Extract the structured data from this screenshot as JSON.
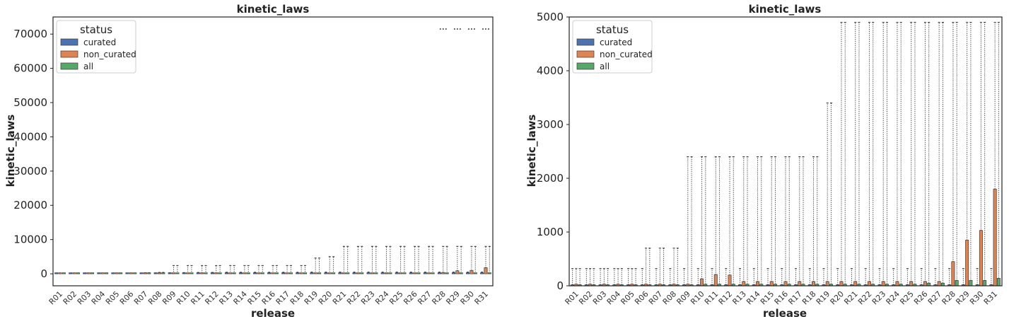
{
  "chart_data": [
    {
      "type": "box",
      "title": "kinetic_laws",
      "xlabel": "release",
      "ylabel": "kinetic_laws",
      "ylim": [
        -3500,
        75000
      ],
      "yticks": [
        "0",
        "10000",
        "20000",
        "30000",
        "40000",
        "50000",
        "60000",
        "70000"
      ],
      "ytick_values": [
        0,
        10000,
        20000,
        30000,
        40000,
        50000,
        60000,
        70000
      ],
      "categories": [
        "R01",
        "R02",
        "R03",
        "R04",
        "R05",
        "R06",
        "R07",
        "R08",
        "R09",
        "R10",
        "R11",
        "R12",
        "R13",
        "R14",
        "R15",
        "R16",
        "R17",
        "R18",
        "R19",
        "R20",
        "R21",
        "R22",
        "R23",
        "R24",
        "R25",
        "R26",
        "R27",
        "R28",
        "R29",
        "R30",
        "R31"
      ],
      "legend": {
        "title": "status",
        "position": "top-left"
      },
      "grid": false,
      "series": [
        {
          "name": "curated",
          "color": "#4C72B0",
          "q3": [
            20,
            20,
            20,
            20,
            20,
            20,
            20,
            20,
            20,
            20,
            20,
            20,
            20,
            20,
            20,
            20,
            20,
            20,
            20,
            20,
            20,
            20,
            20,
            20,
            20,
            20,
            20,
            20,
            20,
            20,
            20
          ],
          "max": [
            120,
            120,
            120,
            120,
            120,
            150,
            200,
            250,
            300,
            350,
            400,
            400,
            450,
            450,
            450,
            450,
            450,
            450,
            500,
            500,
            500,
            500,
            500,
            500,
            500,
            500,
            500,
            500,
            500,
            500,
            500
          ]
        },
        {
          "name": "non_curated",
          "color": "#DD8452",
          "q3": [
            30,
            30,
            30,
            30,
            30,
            30,
            30,
            30,
            30,
            100,
            200,
            200,
            100,
            100,
            100,
            100,
            100,
            100,
            100,
            100,
            100,
            100,
            100,
            100,
            100,
            100,
            100,
            400,
            900,
            1000,
            1800
          ],
          "max": [
            150,
            150,
            150,
            150,
            150,
            200,
            300,
            400,
            2400,
            2400,
            2400,
            2400,
            2400,
            2400,
            2400,
            2400,
            2400,
            2400,
            4600,
            5000,
            8000,
            8000,
            8000,
            8000,
            8000,
            8000,
            8000,
            8000,
            8000,
            8000,
            8000
          ]
        },
        {
          "name": "all",
          "color": "#55A868",
          "q3": [
            20,
            20,
            20,
            20,
            20,
            20,
            20,
            20,
            20,
            30,
            30,
            30,
            30,
            30,
            30,
            30,
            30,
            30,
            30,
            30,
            30,
            30,
            30,
            30,
            30,
            50,
            50,
            100,
            100,
            100,
            150
          ],
          "max": [
            150,
            150,
            150,
            150,
            150,
            200,
            300,
            400,
            2400,
            2400,
            2400,
            2400,
            2400,
            2400,
            2400,
            2400,
            2400,
            2400,
            4600,
            5000,
            8000,
            8000,
            8000,
            8000,
            8000,
            8000,
            8000,
            8000,
            8000,
            8000,
            8000
          ]
        }
      ],
      "outliers_extreme": {
        "categories": [
          "R28",
          "R29",
          "R30",
          "R31"
        ],
        "value": 71500
      }
    },
    {
      "type": "box",
      "title": "kinetic_laws",
      "xlabel": "release",
      "ylabel": "kinetic_laws",
      "ylim": [
        0,
        5000
      ],
      "yticks": [
        "0",
        "1000",
        "2000",
        "3000",
        "4000",
        "5000"
      ],
      "ytick_values": [
        0,
        1000,
        2000,
        3000,
        4000,
        5000
      ],
      "categories": [
        "R01",
        "R02",
        "R03",
        "R04",
        "R05",
        "R06",
        "R07",
        "R08",
        "R09",
        "R10",
        "R11",
        "R12",
        "R13",
        "R14",
        "R15",
        "R16",
        "R17",
        "R18",
        "R19",
        "R20",
        "R21",
        "R22",
        "R23",
        "R24",
        "R25",
        "R26",
        "R27",
        "R28",
        "R29",
        "R30",
        "R31"
      ],
      "legend": {
        "title": "status",
        "position": "top-left"
      },
      "grid": false,
      "series": [
        {
          "name": "curated",
          "color": "#4C72B0",
          "q3": [
            20,
            20,
            20,
            20,
            20,
            20,
            20,
            20,
            20,
            20,
            20,
            20,
            20,
            20,
            20,
            20,
            20,
            20,
            20,
            20,
            20,
            20,
            20,
            20,
            20,
            20,
            20,
            20,
            20,
            20,
            20
          ],
          "max": [
            320,
            320,
            320,
            320,
            320,
            320,
            320,
            320,
            320,
            320,
            320,
            320,
            320,
            320,
            320,
            320,
            320,
            320,
            320,
            320,
            320,
            320,
            320,
            320,
            320,
            320,
            320,
            320,
            320,
            320,
            320
          ]
        },
        {
          "name": "non_curated",
          "color": "#DD8452",
          "q3": [
            30,
            30,
            30,
            30,
            30,
            30,
            30,
            30,
            30,
            130,
            210,
            200,
            80,
            80,
            80,
            80,
            80,
            80,
            80,
            80,
            80,
            80,
            80,
            80,
            80,
            80,
            80,
            450,
            850,
            1030,
            1800
          ],
          "max": [
            320,
            320,
            320,
            320,
            320,
            700,
            700,
            700,
            2400,
            2400,
            2400,
            2400,
            2400,
            2400,
            2400,
            2400,
            2400,
            2400,
            3400,
            4900,
            4900,
            4900,
            4900,
            4900,
            4900,
            4900,
            4900,
            4900,
            4900,
            4900,
            4900
          ]
        },
        {
          "name": "all",
          "color": "#55A868",
          "q3": [
            20,
            20,
            20,
            20,
            20,
            20,
            20,
            20,
            20,
            30,
            30,
            30,
            30,
            30,
            30,
            30,
            30,
            30,
            30,
            30,
            30,
            30,
            30,
            30,
            30,
            50,
            50,
            100,
            100,
            100,
            140
          ],
          "max": [
            320,
            320,
            320,
            320,
            320,
            700,
            700,
            700,
            2400,
            2400,
            2400,
            2400,
            2400,
            2400,
            2400,
            2400,
            2400,
            2400,
            3400,
            4900,
            4900,
            4900,
            4900,
            4900,
            4900,
            4900,
            4900,
            4900,
            4900,
            4900,
            4900
          ]
        }
      ]
    }
  ]
}
